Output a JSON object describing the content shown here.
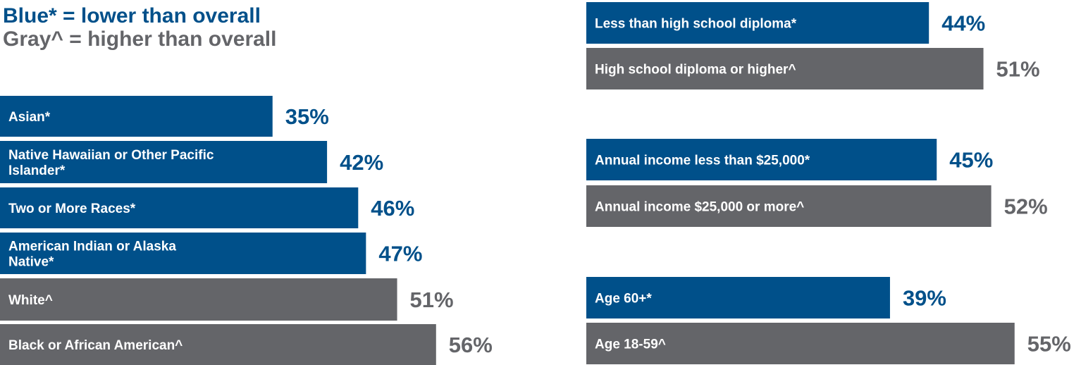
{
  "colors": {
    "blue": "#00508a",
    "gray": "#646569"
  },
  "legend": {
    "blue_text": "Blue* = lower than overall",
    "gray_text": "Gray^ = higher than overall"
  },
  "chart_data": [
    {
      "type": "bar",
      "orientation": "horizontal",
      "title": "",
      "categories": [
        "Asian*",
        "Native Hawaiian or Other Pacific Islander*",
        "Two or More Races*",
        "American Indian or Alaska Native*",
        "White^",
        "Black or African American^"
      ],
      "values": [
        35,
        42,
        46,
        47,
        51,
        56
      ],
      "value_labels": [
        "35%",
        "42%",
        "46%",
        "47%",
        "51%",
        "56%"
      ],
      "bar_colors": [
        "blue",
        "blue",
        "blue",
        "blue",
        "gray",
        "gray"
      ],
      "unit": "%"
    },
    {
      "type": "bar",
      "orientation": "horizontal",
      "title": "",
      "categories": [
        "Less than high school diploma*",
        "High school diploma or higher^"
      ],
      "values": [
        44,
        51
      ],
      "value_labels": [
        "44%",
        "51%"
      ],
      "bar_colors": [
        "blue",
        "gray"
      ],
      "unit": "%"
    },
    {
      "type": "bar",
      "orientation": "horizontal",
      "title": "",
      "categories": [
        "Annual income less than $25,000*",
        "Annual income $25,000 or more^"
      ],
      "values": [
        45,
        52
      ],
      "value_labels": [
        "45%",
        "52%"
      ],
      "bar_colors": [
        "blue",
        "gray"
      ],
      "unit": "%"
    },
    {
      "type": "bar",
      "orientation": "horizontal",
      "title": "",
      "categories": [
        "Age 60+*",
        "Age 18-59^"
      ],
      "values": [
        39,
        55
      ],
      "value_labels": [
        "39%",
        "55%"
      ],
      "bar_colors": [
        "blue",
        "gray"
      ],
      "unit": "%"
    }
  ]
}
